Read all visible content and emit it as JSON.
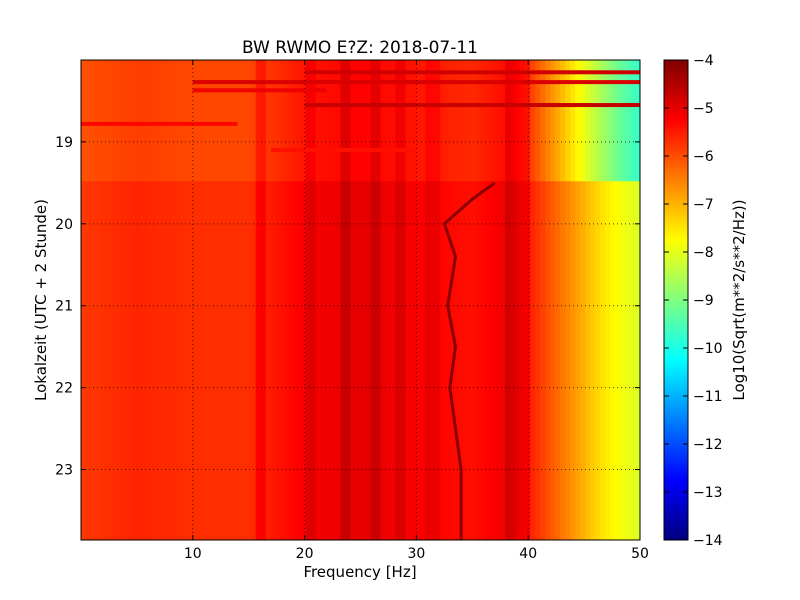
{
  "chart_data": {
    "type": "heatmap",
    "title": "BW RWMO E?Z: 2018-07-11",
    "xlabel": "Frequency [Hz]",
    "ylabel": "Lokalzeit (UTC + 2 Stunde)",
    "xlim": [
      0,
      50
    ],
    "ylim": [
      23.86,
      18.0
    ],
    "x_ticks": [
      10,
      20,
      30,
      40,
      50
    ],
    "y_ticks": [
      19,
      20,
      21,
      22,
      23
    ],
    "grid": true,
    "grid_style": "dotted",
    "colormap": "jet",
    "colorbar": {
      "label": "Log10(Sqrt(m**2/s**2/Hz))",
      "range": [
        -14,
        -4
      ],
      "ticks": [
        -4,
        -5,
        -6,
        -7,
        -8,
        -9,
        -10,
        -11,
        -12,
        -13,
        -14
      ],
      "position": "right"
    },
    "data_gap_end_hour": 19.48,
    "approx_spectrum_profile": {
      "freq_hz": [
        0,
        5,
        10,
        15,
        20,
        25,
        30,
        35,
        38,
        40,
        42,
        44,
        46,
        48,
        50
      ],
      "log10_level": [
        -5.8,
        -5.6,
        -5.7,
        -5.7,
        -5.2,
        -5.0,
        -5.2,
        -5.4,
        -5.1,
        -5.5,
        -6.1,
        -6.7,
        -7.3,
        -7.8,
        -8.1
      ]
    },
    "spectral_line": {
      "name": "",
      "points": [
        {
          "hour": 19.5,
          "freq_hz": 37.0
        },
        {
          "hour": 19.7,
          "freq_hz": 35.0
        },
        {
          "hour": 20.0,
          "freq_hz": 32.5
        },
        {
          "hour": 20.4,
          "freq_hz": 33.5
        },
        {
          "hour": 21.0,
          "freq_hz": 32.8
        },
        {
          "hour": 21.5,
          "freq_hz": 33.5
        },
        {
          "hour": 22.0,
          "freq_hz": 33.0
        },
        {
          "hour": 22.5,
          "freq_hz": 33.5
        },
        {
          "hour": 23.0,
          "freq_hz": 34.0
        },
        {
          "hour": 23.86,
          "freq_hz": 34.0
        }
      ]
    }
  }
}
